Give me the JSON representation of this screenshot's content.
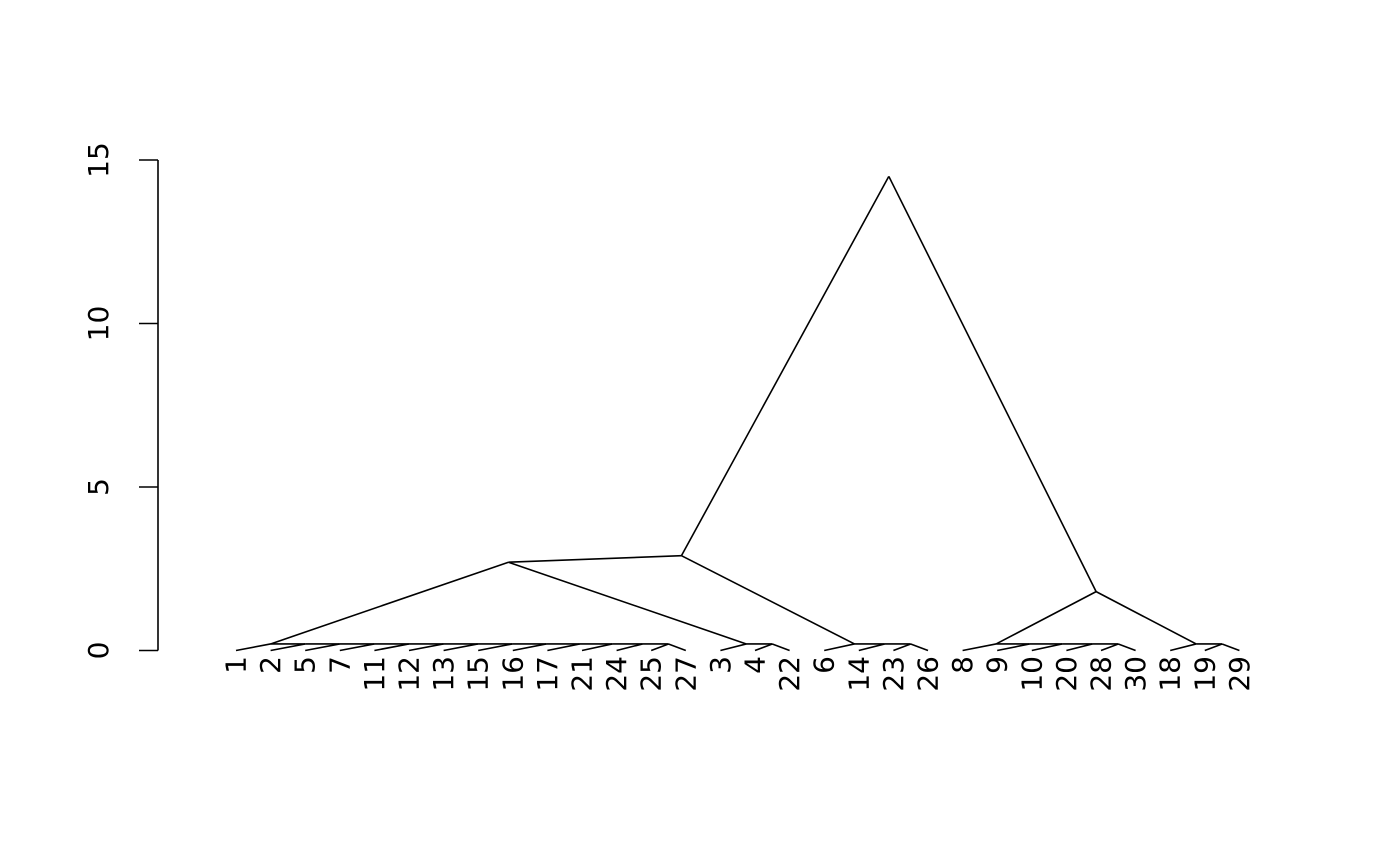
{
  "chart_data": {
    "type": "dendrogram",
    "title": "",
    "xlabel": "",
    "ylabel": "",
    "ylim": [
      0,
      15
    ],
    "y_ticks": [
      0,
      5,
      10,
      15
    ],
    "y_tick_labels": [
      "0",
      "5",
      "10",
      "15"
    ],
    "grid": false,
    "legend": "none",
    "line_color": "#000000",
    "leaves": [
      "1",
      "2",
      "5",
      "7",
      "11",
      "12",
      "13",
      "15",
      "16",
      "17",
      "21",
      "24",
      "25",
      "27",
      "3",
      "4",
      "22",
      "6",
      "14",
      "23",
      "26",
      "8",
      "9",
      "10",
      "20",
      "28",
      "30",
      "18",
      "19",
      "29"
    ],
    "nodes": [
      {
        "id": "A0",
        "kind": "leaf",
        "label": "1"
      },
      {
        "id": "A1",
        "kind": "leaf",
        "label": "2"
      },
      {
        "id": "A2",
        "kind": "leaf",
        "label": "5"
      },
      {
        "id": "A3",
        "kind": "leaf",
        "label": "7"
      },
      {
        "id": "A4",
        "kind": "leaf",
        "label": "11"
      },
      {
        "id": "A5",
        "kind": "leaf",
        "label": "12"
      },
      {
        "id": "A6",
        "kind": "leaf",
        "label": "13"
      },
      {
        "id": "A7",
        "kind": "leaf",
        "label": "15"
      },
      {
        "id": "A8",
        "kind": "leaf",
        "label": "16"
      },
      {
        "id": "A9",
        "kind": "leaf",
        "label": "17"
      },
      {
        "id": "A10",
        "kind": "leaf",
        "label": "21"
      },
      {
        "id": "A11",
        "kind": "leaf",
        "label": "24"
      },
      {
        "id": "A12",
        "kind": "leaf",
        "label": "25"
      },
      {
        "id": "A13",
        "kind": "leaf",
        "label": "27"
      },
      {
        "id": "B0",
        "kind": "leaf",
        "label": "3"
      },
      {
        "id": "B1",
        "kind": "leaf",
        "label": "4"
      },
      {
        "id": "B2",
        "kind": "leaf",
        "label": "22"
      },
      {
        "id": "C0",
        "kind": "leaf",
        "label": "6"
      },
      {
        "id": "C1",
        "kind": "leaf",
        "label": "14"
      },
      {
        "id": "C2",
        "kind": "leaf",
        "label": "23"
      },
      {
        "id": "C3",
        "kind": "leaf",
        "label": "26"
      },
      {
        "id": "D0",
        "kind": "leaf",
        "label": "8"
      },
      {
        "id": "D1",
        "kind": "leaf",
        "label": "9"
      },
      {
        "id": "D2",
        "kind": "leaf",
        "label": "10"
      },
      {
        "id": "D3",
        "kind": "leaf",
        "label": "20"
      },
      {
        "id": "D4",
        "kind": "leaf",
        "label": "28"
      },
      {
        "id": "D5",
        "kind": "leaf",
        "label": "30"
      },
      {
        "id": "E0",
        "kind": "leaf",
        "label": "18"
      },
      {
        "id": "E1",
        "kind": "leaf",
        "label": "19"
      },
      {
        "id": "E2",
        "kind": "leaf",
        "label": "29"
      },
      {
        "id": "A_m1",
        "kind": "merge",
        "left": "A12",
        "right": "A13",
        "height": 0.2
      },
      {
        "id": "A_m2",
        "kind": "merge",
        "left": "A11",
        "right": "A_m1",
        "height": 0.2
      },
      {
        "id": "A_m3",
        "kind": "merge",
        "left": "A10",
        "right": "A_m2",
        "height": 0.2
      },
      {
        "id": "A_m4",
        "kind": "merge",
        "left": "A9",
        "right": "A_m3",
        "height": 0.2
      },
      {
        "id": "A_m5",
        "kind": "merge",
        "left": "A8",
        "right": "A_m4",
        "height": 0.2
      },
      {
        "id": "A_m6",
        "kind": "merge",
        "left": "A7",
        "right": "A_m5",
        "height": 0.2
      },
      {
        "id": "A_m7",
        "kind": "merge",
        "left": "A6",
        "right": "A_m6",
        "height": 0.2
      },
      {
        "id": "A_m8",
        "kind": "merge",
        "left": "A5",
        "right": "A_m7",
        "height": 0.2
      },
      {
        "id": "A_m9",
        "kind": "merge",
        "left": "A4",
        "right": "A_m8",
        "height": 0.2
      },
      {
        "id": "A_m10",
        "kind": "merge",
        "left": "A3",
        "right": "A_m9",
        "height": 0.2
      },
      {
        "id": "A_m11",
        "kind": "merge",
        "left": "A2",
        "right": "A_m10",
        "height": 0.2
      },
      {
        "id": "A_m12",
        "kind": "merge",
        "left": "A1",
        "right": "A_m11",
        "height": 0.2
      },
      {
        "id": "A_m13",
        "kind": "merge",
        "left": "A0",
        "right": "A_m12",
        "height": 0.2
      },
      {
        "id": "B_m1",
        "kind": "merge",
        "left": "B1",
        "right": "B2",
        "height": 0.2
      },
      {
        "id": "B_m2",
        "kind": "merge",
        "left": "B0",
        "right": "B_m1",
        "height": 0.2
      },
      {
        "id": "C_m1",
        "kind": "merge",
        "left": "C2",
        "right": "C3",
        "height": 0.2
      },
      {
        "id": "C_m2",
        "kind": "merge",
        "left": "C1",
        "right": "C_m1",
        "height": 0.2
      },
      {
        "id": "C_m3",
        "kind": "merge",
        "left": "C0",
        "right": "C_m2",
        "height": 0.2
      },
      {
        "id": "D_m1",
        "kind": "merge",
        "left": "D4",
        "right": "D5",
        "height": 0.2
      },
      {
        "id": "D_m2",
        "kind": "merge",
        "left": "D3",
        "right": "D_m1",
        "height": 0.2
      },
      {
        "id": "D_m3",
        "kind": "merge",
        "left": "D2",
        "right": "D_m2",
        "height": 0.2
      },
      {
        "id": "D_m4",
        "kind": "merge",
        "left": "D1",
        "right": "D_m3",
        "height": 0.2
      },
      {
        "id": "D_m5",
        "kind": "merge",
        "left": "D0",
        "right": "D_m4",
        "height": 0.2
      },
      {
        "id": "E_m1",
        "kind": "merge",
        "left": "E1",
        "right": "E2",
        "height": 0.2
      },
      {
        "id": "E_m2",
        "kind": "merge",
        "left": "E0",
        "right": "E_m1",
        "height": 0.2
      },
      {
        "id": "AB",
        "kind": "merge",
        "left": "A_m13",
        "right": "B_m2",
        "height": 2.7
      },
      {
        "id": "ABC",
        "kind": "merge",
        "left": "AB",
        "right": "C_m3",
        "height": 2.9
      },
      {
        "id": "DE",
        "kind": "merge",
        "left": "D_m5",
        "right": "E_m2",
        "height": 1.8
      },
      {
        "id": "root",
        "kind": "merge",
        "left": "ABC",
        "right": "DE",
        "height": 14.5
      }
    ]
  }
}
